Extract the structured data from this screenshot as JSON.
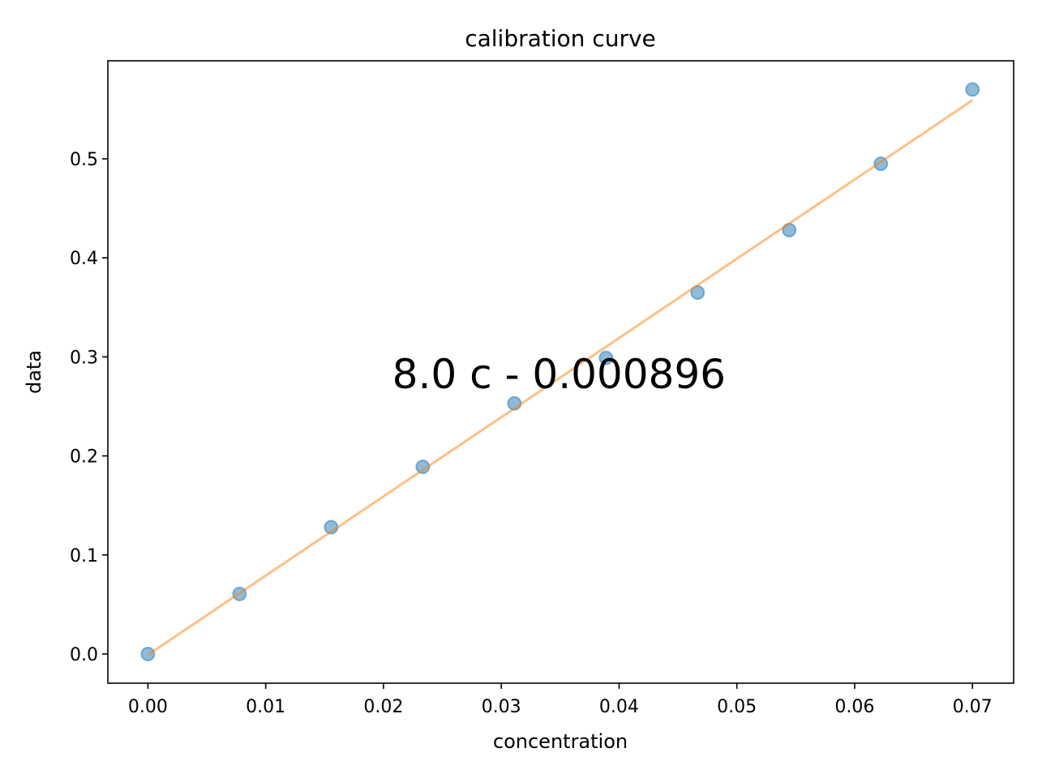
{
  "chart_data": {
    "type": "scatter",
    "title": "calibration curve",
    "xlabel": "concentration",
    "ylabel": "data",
    "xlim": [
      -0.0034,
      0.0735
    ],
    "ylim": [
      -0.0295,
      0.599
    ],
    "xticks": [
      0.0,
      0.01,
      0.02,
      0.03,
      0.04,
      0.05,
      0.06,
      0.07
    ],
    "xtick_labels": [
      "0.00",
      "0.01",
      "0.02",
      "0.03",
      "0.04",
      "0.05",
      "0.06",
      "0.07"
    ],
    "yticks": [
      0.0,
      0.1,
      0.2,
      0.3,
      0.4,
      0.5
    ],
    "ytick_labels": [
      "0.0",
      "0.1",
      "0.2",
      "0.3",
      "0.4",
      "0.5"
    ],
    "grid": false,
    "series": [
      {
        "name": "data",
        "type": "scatter",
        "color": "#1f77b4",
        "x": [
          0.0,
          0.007778,
          0.015556,
          0.023333,
          0.031111,
          0.038889,
          0.046667,
          0.054444,
          0.062222,
          0.07
        ],
        "y": [
          0.0,
          0.0606,
          0.128,
          0.189,
          0.253,
          0.299,
          0.365,
          0.428,
          0.495,
          0.57
        ]
      },
      {
        "name": "fit",
        "type": "line",
        "color": "#ff7f0e",
        "slope": 8.0,
        "intercept": -0.000896,
        "x": [
          0.0,
          0.07
        ]
      }
    ],
    "annotation": {
      "text": "8.0 c - 0.000896",
      "x": 0.0349,
      "y": 0.283
    }
  }
}
